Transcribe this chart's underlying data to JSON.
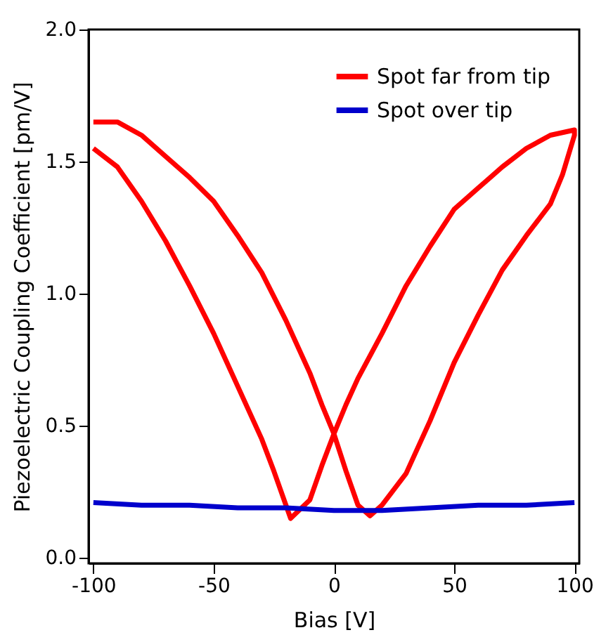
{
  "chart_data": {
    "type": "line",
    "xlabel": "Bias [V]",
    "ylabel": "Piezoelectric Coupling Coefficient [pm/V]",
    "xlim": [
      -102,
      102
    ],
    "xticks": [
      -100,
      -50,
      0,
      50,
      100
    ],
    "ylim": [
      -0.02,
      2.0
    ],
    "yticks": [
      {
        "value": 0,
        "label": "0.0"
      },
      {
        "value": 0.5,
        "label": "0.5"
      },
      {
        "value": 1,
        "label": "1.0"
      },
      {
        "value": 1.5,
        "label": "1.5"
      },
      {
        "value": 2,
        "label": "2.0"
      }
    ],
    "grid": false,
    "legend": "top right",
    "marker": "none",
    "line_style": "solid",
    "series": [
      {
        "name": "Spot far from tip",
        "color": "#ff0000",
        "x": [
          -100,
          -90,
          -80,
          -70,
          -60,
          -50,
          -40,
          -30,
          -20,
          -10,
          -5,
          0,
          5,
          10,
          15,
          20,
          30,
          40,
          50,
          60,
          70,
          80,
          90,
          95,
          100,
          100,
          90,
          80,
          70,
          60,
          50,
          40,
          30,
          20,
          10,
          5,
          0,
          -5,
          -10,
          -18,
          -25,
          -30,
          -40,
          -50,
          -60,
          -70,
          -80,
          -90,
          -100
        ],
        "values": [
          1.65,
          1.65,
          1.6,
          1.52,
          1.44,
          1.35,
          1.22,
          1.08,
          0.9,
          0.7,
          0.58,
          0.47,
          0.33,
          0.2,
          0.16,
          0.2,
          0.32,
          0.52,
          0.74,
          0.92,
          1.09,
          1.22,
          1.34,
          1.45,
          1.6,
          1.62,
          1.6,
          1.55,
          1.48,
          1.4,
          1.32,
          1.18,
          1.03,
          0.85,
          0.68,
          0.58,
          0.47,
          0.35,
          0.22,
          0.15,
          0.33,
          0.45,
          0.65,
          0.85,
          1.03,
          1.2,
          1.35,
          1.48,
          1.55
        ]
      },
      {
        "name": "Spot over tip",
        "color": "#0000cc",
        "x": [
          -100,
          -80,
          -60,
          -40,
          -20,
          0,
          20,
          40,
          60,
          80,
          100
        ],
        "values": [
          0.21,
          0.2,
          0.2,
          0.19,
          0.19,
          0.18,
          0.18,
          0.19,
          0.2,
          0.2,
          0.21
        ]
      }
    ]
  }
}
